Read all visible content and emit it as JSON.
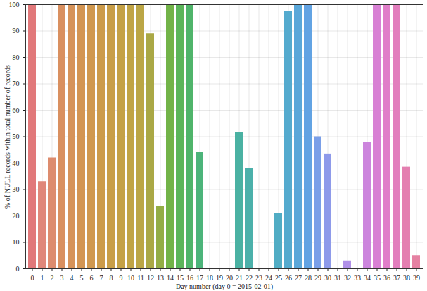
{
  "chart_data": {
    "type": "bar",
    "xlabel": "Day number (day 0 = 2015-02-01)",
    "ylabel": "% of NULL records within total number of records",
    "categories": [
      0,
      1,
      2,
      3,
      4,
      5,
      6,
      7,
      8,
      9,
      10,
      11,
      12,
      13,
      14,
      15,
      16,
      17,
      18,
      19,
      20,
      21,
      22,
      23,
      24,
      25,
      26,
      27,
      28,
      29,
      30,
      31,
      32,
      33,
      34,
      35,
      36,
      37,
      38,
      39
    ],
    "values": [
      100,
      33,
      42,
      100,
      100,
      100,
      100,
      100,
      100,
      100,
      100,
      100,
      89,
      23.5,
      100,
      100,
      100,
      44,
      0,
      0,
      0,
      51.5,
      38,
      0,
      0,
      21,
      97.5,
      100,
      100,
      50,
      43.5,
      0,
      3,
      0,
      48,
      100,
      100,
      100,
      38.5,
      5
    ],
    "colors": [
      "#e1787a",
      "#e0877a",
      "#dd8c6e",
      "#d99060",
      "#d6935a",
      "#d39553",
      "#d0984f",
      "#cc9b4b",
      "#c89e48",
      "#c4a146",
      "#c0a445",
      "#bba645",
      "#aaa845",
      "#93ad45",
      "#72b348",
      "#5bb55a",
      "#4fb46a",
      "#4cb47a",
      "#4bb386",
      "#4ab290",
      "#4ab29a",
      "#4ab1a2",
      "#4bb0aa",
      "#4cafb2",
      "#4eaebb",
      "#50acc4",
      "#54aace",
      "#5aa7d9",
      "#62a3e3",
      "#7a9fe8",
      "#8e9aea",
      "#a095ea",
      "#b090e8",
      "#bf8ae4",
      "#cc85dd",
      "#d880d4",
      "#e07ec9",
      "#e27ebd",
      "#e47fb0",
      "#e581a2"
    ],
    "ylim": [
      0,
      100
    ],
    "yticks": [
      0,
      10,
      20,
      30,
      40,
      50,
      60,
      70,
      80,
      90,
      100
    ],
    "grid": true
  }
}
